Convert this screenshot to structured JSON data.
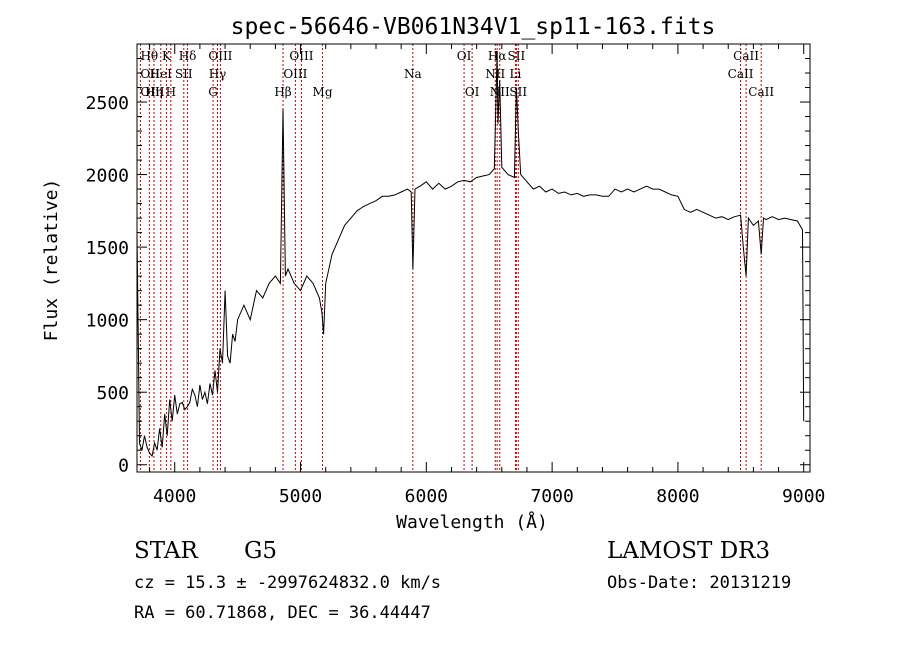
{
  "chart_data": {
    "type": "line",
    "title": "spec-56646-VB061N34V1_sp11-163.fits",
    "xlabel": "Wavelength (Å)",
    "ylabel": "Flux (relative)",
    "xlim": [
      3700,
      9050
    ],
    "ylim": [
      -50,
      2900
    ],
    "x_ticks": [
      4000,
      5000,
      6000,
      7000,
      8000,
      9000
    ],
    "y_ticks": [
      0,
      500,
      1000,
      1500,
      2000,
      2500
    ],
    "grid": false,
    "spectrum": {
      "x": [
        3700,
        3720,
        3740,
        3760,
        3780,
        3800,
        3820,
        3840,
        3860,
        3880,
        3900,
        3920,
        3940,
        3960,
        3980,
        4000,
        4020,
        4040,
        4060,
        4080,
        4100,
        4120,
        4140,
        4160,
        4180,
        4200,
        4220,
        4240,
        4260,
        4280,
        4300,
        4320,
        4340,
        4360,
        4380,
        4400,
        4420,
        4440,
        4460,
        4480,
        4500,
        4550,
        4600,
        4650,
        4700,
        4750,
        4800,
        4840,
        4861,
        4880,
        4900,
        4950,
        5000,
        5050,
        5100,
        5150,
        5170,
        5183,
        5200,
        5250,
        5300,
        5350,
        5400,
        5450,
        5500,
        5550,
        5600,
        5650,
        5700,
        5750,
        5800,
        5850,
        5880,
        5893,
        5910,
        5950,
        6000,
        6050,
        6100,
        6150,
        6200,
        6250,
        6300,
        6350,
        6400,
        6450,
        6500,
        6540,
        6555,
        6563,
        6570,
        6583,
        6600,
        6650,
        6700,
        6716,
        6731,
        6750,
        6800,
        6850,
        6900,
        6950,
        7000,
        7050,
        7100,
        7150,
        7200,
        7250,
        7300,
        7350,
        7400,
        7450,
        7500,
        7550,
        7600,
        7650,
        7700,
        7750,
        7800,
        7850,
        7900,
        7950,
        8000,
        8050,
        8100,
        8150,
        8200,
        8250,
        8300,
        8350,
        8400,
        8450,
        8498,
        8520,
        8542,
        8560,
        8600,
        8640,
        8662,
        8680,
        8700,
        8750,
        8800,
        8850,
        8900,
        8950,
        8990,
        9000
      ],
      "y": [
        1600,
        150,
        100,
        200,
        120,
        80,
        60,
        150,
        100,
        250,
        120,
        350,
        200,
        450,
        300,
        480,
        350,
        420,
        430,
        380,
        400,
        430,
        520,
        480,
        400,
        550,
        450,
        500,
        420,
        560,
        480,
        650,
        500,
        800,
        700,
        1200,
        750,
        700,
        900,
        850,
        1000,
        1100,
        1000,
        1200,
        1150,
        1250,
        1300,
        1250,
        2450,
        1300,
        1350,
        1250,
        1200,
        1300,
        1250,
        1150,
        1050,
        900,
        1250,
        1450,
        1550,
        1650,
        1700,
        1750,
        1780,
        1800,
        1820,
        1850,
        1850,
        1860,
        1880,
        1900,
        1880,
        1350,
        1900,
        1920,
        1950,
        1900,
        1940,
        1900,
        1920,
        1950,
        1960,
        1950,
        1980,
        1990,
        2000,
        2040,
        2550,
        2850,
        2350,
        2650,
        2050,
        2000,
        1980,
        2600,
        2300,
        2000,
        1950,
        1900,
        1920,
        1880,
        1900,
        1870,
        1880,
        1860,
        1870,
        1850,
        1860,
        1860,
        1850,
        1850,
        1900,
        1880,
        1900,
        1880,
        1900,
        1920,
        1900,
        1900,
        1880,
        1860,
        1850,
        1760,
        1740,
        1760,
        1740,
        1720,
        1700,
        1710,
        1690,
        1710,
        1720,
        1500,
        1300,
        1700,
        1650,
        1680,
        1450,
        1700,
        1690,
        1710,
        1690,
        1700,
        1690,
        1680,
        1620,
        300
      ],
      "color": "#000000"
    },
    "lines": [
      {
        "label": "Hθ",
        "x": 3798,
        "row": 0,
        "align": "middle"
      },
      {
        "label": "OII",
        "x": 3727,
        "row": 1,
        "align": "start"
      },
      {
        "label": "OIII",
        "x": 3727,
        "row": 2,
        "align": "start"
      },
      {
        "label": "K",
        "x": 3934,
        "row": 0,
        "align": "middle"
      },
      {
        "label": "HeI",
        "x": 3889,
        "row": 1,
        "align": "middle"
      },
      {
        "label": "Hη",
        "x": 3835,
        "row": 2,
        "align": "middle"
      },
      {
        "label": "H",
        "x": 3969,
        "row": 2,
        "align": "middle"
      },
      {
        "label": "SII",
        "x": 4072,
        "row": 1,
        "align": "middle"
      },
      {
        "label": "Hδ",
        "x": 4102,
        "row": 0,
        "align": "middle"
      },
      {
        "label": "OIII",
        "x": 4363,
        "row": 0,
        "align": "middle"
      },
      {
        "label": "Hγ",
        "x": 4340,
        "row": 1,
        "align": "middle"
      },
      {
        "label": "G",
        "x": 4305,
        "row": 2,
        "align": "middle"
      },
      {
        "label": "Hβ",
        "x": 4861,
        "row": 2,
        "align": "middle"
      },
      {
        "label": "OIII",
        "x": 5007,
        "row": 0,
        "align": "middle"
      },
      {
        "label": "OIII",
        "x": 4959,
        "row": 1,
        "align": "middle"
      },
      {
        "label": "Mg",
        "x": 5175,
        "row": 2,
        "align": "middle"
      },
      {
        "label": "Na",
        "x": 5893,
        "row": 1,
        "align": "middle"
      },
      {
        "label": "OI",
        "x": 6300,
        "row": 0,
        "align": "middle"
      },
      {
        "label": "OI",
        "x": 6364,
        "row": 2,
        "align": "middle"
      },
      {
        "label": "Hα",
        "x": 6563,
        "row": 0,
        "align": "middle"
      },
      {
        "label": "NII",
        "x": 6548,
        "row": 1,
        "align": "middle"
      },
      {
        "label": "NII",
        "x": 6584,
        "row": 2,
        "align": "middle"
      },
      {
        "label": "SII",
        "x": 6716,
        "row": 0,
        "align": "middle"
      },
      {
        "label": "Li",
        "x": 6708,
        "row": 1,
        "align": "middle"
      },
      {
        "label": "SII",
        "x": 6731,
        "row": 2,
        "align": "middle"
      },
      {
        "label": "CaII",
        "x": 8542,
        "row": 0,
        "align": "middle"
      },
      {
        "label": "CaII",
        "x": 8498,
        "row": 1,
        "align": "middle"
      },
      {
        "label": "CaII",
        "x": 8662,
        "row": 2,
        "align": "middle"
      }
    ]
  },
  "info": {
    "class": "STAR",
    "subclass": "G5",
    "survey": "LAMOST DR3",
    "cz": "cz = 15.3 ± -2997624832.0 km/s",
    "obs_date": "Obs-Date: 20131219",
    "radec": "RA =  60.71868, DEC =  36.44447"
  }
}
